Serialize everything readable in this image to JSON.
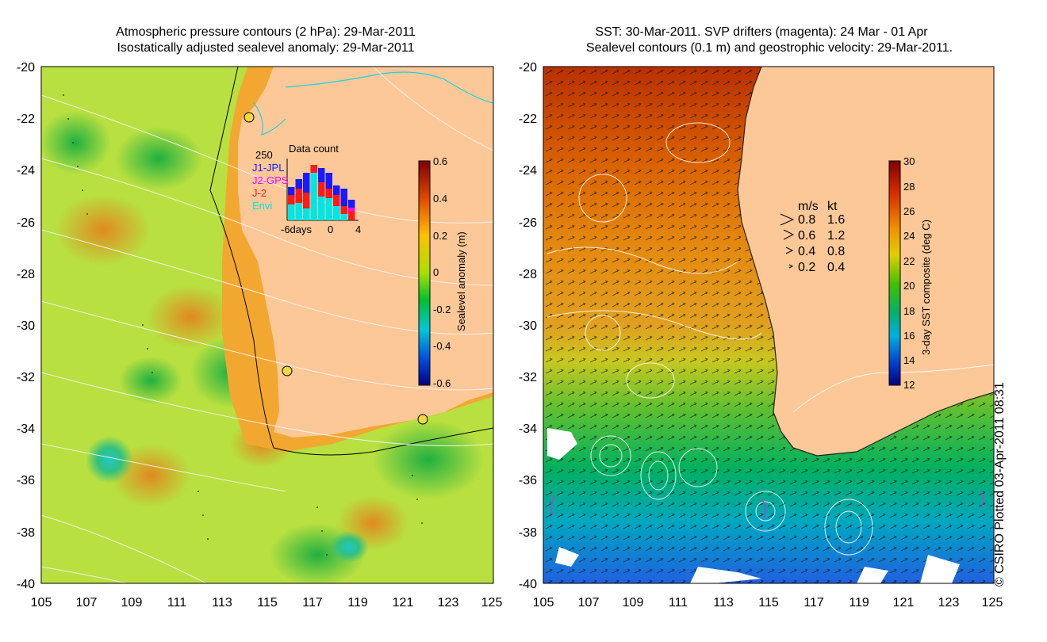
{
  "left_panel": {
    "title_line1": "Atmospheric pressure contours (2 hPa): 29-Mar-2011",
    "title_line2": "Isostatically adjusted sealevel anomaly: 29-Mar-2011",
    "x_ticks": [
      "105",
      "107",
      "109",
      "111",
      "113",
      "115",
      "117",
      "119",
      "121",
      "123",
      "125"
    ],
    "y_ticks": [
      "-20",
      "-22",
      "-24",
      "-26",
      "-28",
      "-30",
      "-32",
      "-34",
      "-36",
      "-38",
      "-40"
    ],
    "colorbar": {
      "label": "Sealevel anomaly (m)",
      "ticks": [
        "0.6",
        "0.4",
        "0.2",
        "0",
        "-0.2",
        "-0.4",
        "-0.6"
      ]
    },
    "inset": {
      "title": "Data count",
      "ymax_label": "250",
      "x_labels": [
        "-6days",
        "0",
        "4"
      ],
      "legend": [
        {
          "label": "J1-JPL",
          "color": "#1a1aff"
        },
        {
          "label": "J2-GPS",
          "color": "#ff00ff"
        },
        {
          "label": "J-2",
          "color": "#ff1a1a"
        },
        {
          "label": "Envi",
          "color": "#00e5e5"
        }
      ]
    }
  },
  "right_panel": {
    "title_line1": "SST: 30-Mar-2011. SVP drifters (magenta): 24 Mar - 01 Apr",
    "title_line2": "Sealevel contours (0.1 m) and geostrophic velocity: 29-Mar-2011.",
    "x_ticks": [
      "105",
      "107",
      "109",
      "111",
      "113",
      "115",
      "117",
      "119",
      "121",
      "123",
      "125"
    ],
    "y_ticks": [
      "-20",
      "-22",
      "-24",
      "-26",
      "-28",
      "-30",
      "-32",
      "-34",
      "-36",
      "-38",
      "-40"
    ],
    "colorbar": {
      "label": "3-day SST composite (deg C)",
      "ticks": [
        "30",
        "28",
        "26",
        "24",
        "22",
        "20",
        "18",
        "16",
        "14",
        "12"
      ]
    },
    "velocity_legend": {
      "header_ms": "m/s",
      "header_kt": "kt",
      "rows": [
        {
          "ms": "0.8",
          "kt": "1.6"
        },
        {
          "ms": "0.6",
          "kt": "1.2"
        },
        {
          "ms": "0.4",
          "kt": "0.8"
        },
        {
          "ms": "0.2",
          "kt": "0.4"
        }
      ]
    }
  },
  "credit": "© CSIRO Plotted 03-Apr-2011 08:31",
  "colors": {
    "land": "#fcc898",
    "coast_cyan": "#19d2e6",
    "contour": "#ffffff"
  }
}
